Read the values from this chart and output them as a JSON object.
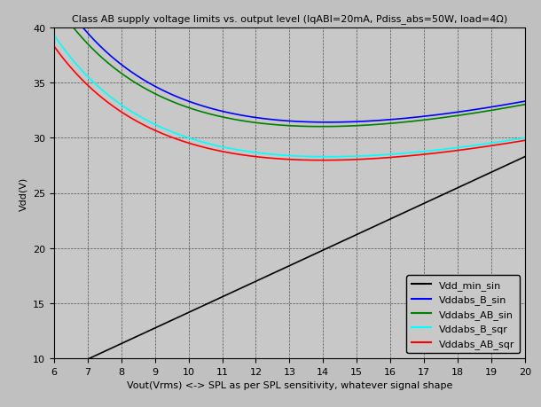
{
  "title": "Class AB supply voltage limits vs. output level (IqABI=20mA, Pdiss_abs=50W, load=4Ω)",
  "xlabel": "Vout(Vrms) <-> SPL as per SPL sensitivity, whatever signal shape",
  "ylabel": "Vdd(V)",
  "xlim": [
    6,
    20
  ],
  "ylim": [
    10,
    40
  ],
  "xticks": [
    6,
    7,
    8,
    9,
    10,
    11,
    12,
    13,
    14,
    15,
    16,
    17,
    18,
    19,
    20
  ],
  "yticks": [
    10,
    15,
    20,
    25,
    30,
    35,
    40
  ],
  "background_color": "#c0c0c0",
  "plot_bg_color": "#c8c8c8",
  "grid_color": "#000000",
  "Iq": 0.02,
  "Pdiss": 50,
  "load": 4,
  "legend": [
    "Vdd_min_sin",
    "Vddabs_B_sin",
    "Vddabs_AB_sin",
    "Vddabs_B_sqr",
    "Vddabs_AB_sqr"
  ],
  "colors": [
    "black",
    "blue",
    "green",
    "cyan",
    "red"
  ],
  "title_fontsize": 8,
  "label_fontsize": 8,
  "tick_fontsize": 8,
  "legend_fontsize": 8
}
